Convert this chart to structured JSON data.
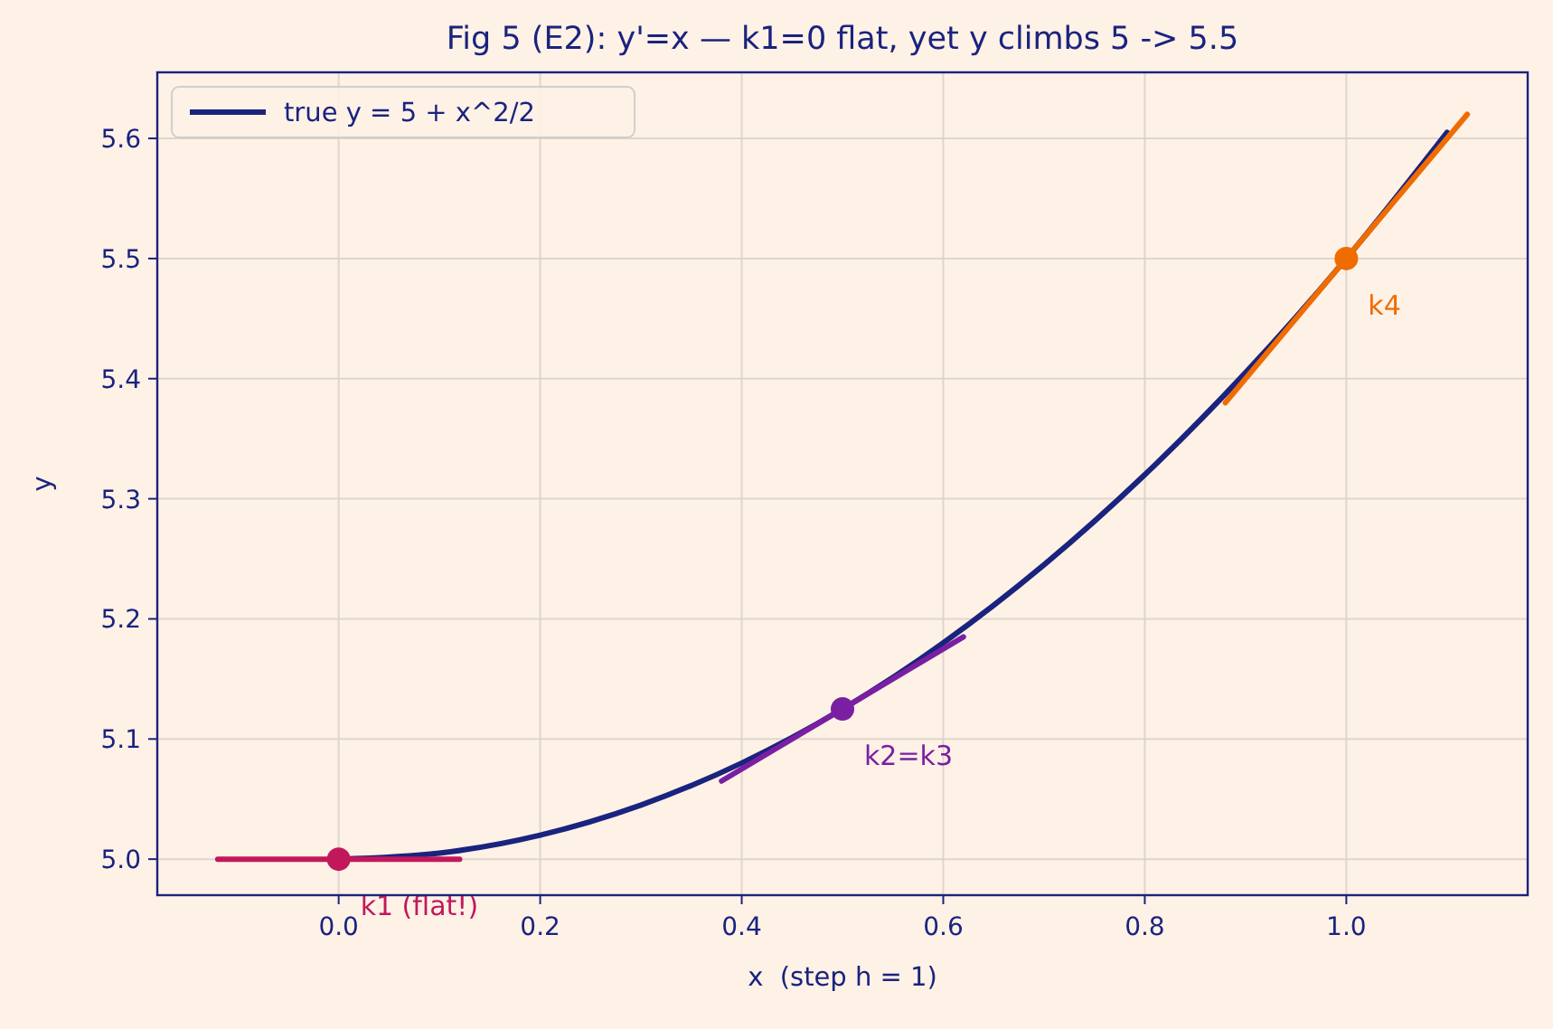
{
  "chart_data": {
    "type": "line",
    "title": "Fig 5 (E2): y'=x — k1=0 flat, yet y climbs 5 -> 5.5",
    "xlabel": "x  (step h = 1)",
    "ylabel": "y",
    "xlim": [
      -0.18,
      1.18
    ],
    "ylim": [
      4.97,
      5.655
    ],
    "xticks": [
      {
        "value": 0,
        "label": "0.0"
      },
      {
        "value": 0.2,
        "label": "0.2"
      },
      {
        "value": 0.4,
        "label": "0.4"
      },
      {
        "value": 0.6,
        "label": "0.6"
      },
      {
        "value": 0.8,
        "label": "0.8"
      },
      {
        "value": 1,
        "label": "1.0"
      }
    ],
    "yticks": [
      {
        "value": 5,
        "label": "5.0"
      },
      {
        "value": 5.1,
        "label": "5.1"
      },
      {
        "value": 5.2,
        "label": "5.2"
      },
      {
        "value": 5.3,
        "label": "5.3"
      },
      {
        "value": 5.4,
        "label": "5.4"
      },
      {
        "value": 5.5,
        "label": "5.5"
      },
      {
        "value": 5.6,
        "label": "5.6"
      }
    ],
    "grid": true,
    "legend": "top left",
    "marker": "none",
    "series": [
      {
        "name": "true y = 5 + x^2/2",
        "color": "#1a237e",
        "x": [
          0,
          0.1,
          0.2,
          0.3,
          0.4,
          0.5,
          0.6,
          0.7,
          0.8,
          0.9,
          1.0,
          1.1
        ],
        "values": [
          5,
          5.005,
          5.02,
          5.045,
          5.08,
          5.125,
          5.18,
          5.245,
          5.32,
          5.405,
          5.5,
          5.605
        ]
      },
      {
        "color": "#c2185b",
        "x": [
          -0.12,
          0.12
        ],
        "values": [
          5,
          5
        ]
      },
      {
        "color": "#7b1fa2",
        "x": [
          0.38,
          0.62
        ],
        "values": [
          5.065,
          5.185
        ]
      },
      {
        "color": "#ef6c00",
        "x": [
          0.88,
          1.12
        ],
        "values": [
          5.38,
          5.62
        ]
      },
      {
        "type": "scatter",
        "marker": "circle",
        "x": [
          0,
          0.5,
          1
        ],
        "values": [
          5,
          5.125,
          5.5
        ],
        "colors": [
          "#c2185b",
          "#7b1fa2",
          "#ef6c00"
        ]
      }
    ],
    "annotations": [
      {
        "text": "k1 (flat!)",
        "x": 0,
        "y": 5
      },
      {
        "text": "k2=k3",
        "x": 0.5,
        "y": 5.125
      },
      {
        "text": "k4",
        "x": 1,
        "y": 5.5
      }
    ]
  }
}
